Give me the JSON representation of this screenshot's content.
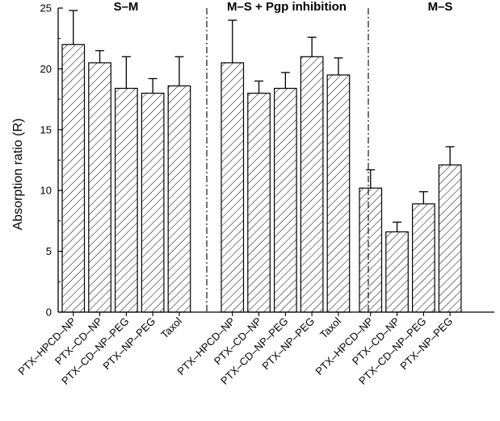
{
  "chart_data": {
    "type": "bar",
    "title": "",
    "xlabel": "",
    "ylabel": "Absorption ratio (R)",
    "ylim": [
      0,
      25
    ],
    "yticks": [
      0,
      5,
      10,
      15,
      20,
      25
    ],
    "ytick_labels": [
      "0",
      "5",
      "10",
      "15",
      "20",
      "25"
    ],
    "bar_fill": "hatched",
    "bar_color": "#000000",
    "grid": false,
    "groups": [
      {
        "title": "S–M",
        "categories": [
          "PTX–HPCD–NP",
          "PTX–CD–NP",
          "PTX–CD–NP–PEG",
          "PTX–NP–PEG",
          "Taxol"
        ],
        "values": [
          22.0,
          20.5,
          18.4,
          18.0,
          18.6
        ],
        "errors": [
          2.8,
          1.0,
          2.6,
          1.2,
          2.4
        ]
      },
      {
        "title": "M–S + Pgp inhibition",
        "categories": [
          "PTX–HPCD–NP",
          "PTX–CD–NP",
          "PTX–CD–NP–PEG",
          "PTX–NP–PEG",
          "Taxol"
        ],
        "values": [
          20.5,
          18.0,
          18.4,
          21.0,
          19.5
        ],
        "errors": [
          3.5,
          1.0,
          1.3,
          1.6,
          1.4
        ]
      },
      {
        "title": "M–S",
        "categories": [
          "PTX–HPCD–NP",
          "PTX–CD–NP",
          "PTX–CD–NP–PEG",
          "PTX–NP–PEG"
        ],
        "values": [
          10.2,
          6.6,
          8.9,
          12.1
        ],
        "errors": [
          1.5,
          0.8,
          1.0,
          1.5
        ]
      }
    ]
  }
}
